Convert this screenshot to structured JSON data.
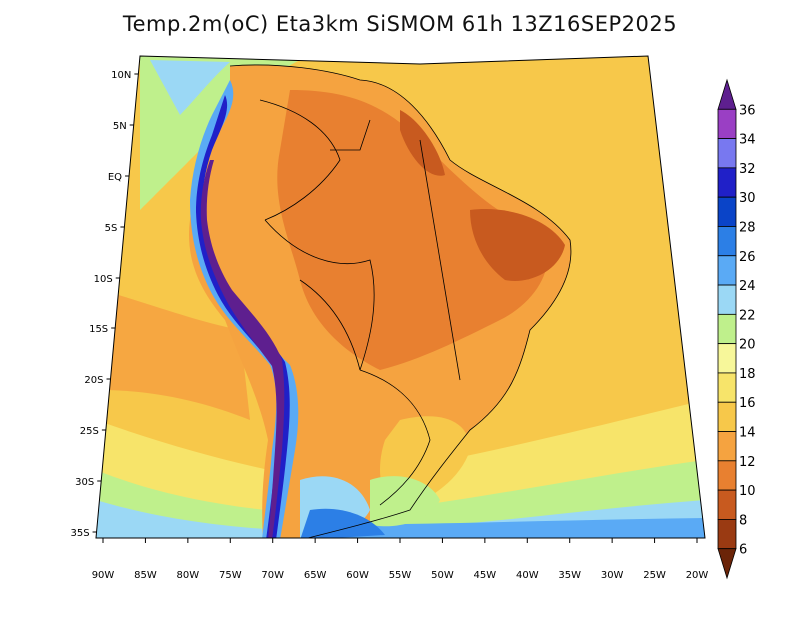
{
  "title": "Temp.2m(oC) Eta3km SiSMOM 61h 13Z16SEP2025",
  "lat_labels": [
    "10N",
    "5N",
    "EQ",
    "5S",
    "10S",
    "15S",
    "20S",
    "25S",
    "30S",
    "35S"
  ],
  "lon_labels": [
    "90W",
    "85W",
    "80W",
    "75W",
    "70W",
    "65W",
    "60W",
    "55W",
    "50W",
    "45W",
    "40W",
    "35W",
    "30W",
    "25W",
    "20W"
  ],
  "colorbar": {
    "unit": "oC",
    "levels": [
      "6",
      "8",
      "10",
      "12",
      "14",
      "16",
      "18",
      "20",
      "22",
      "24",
      "26",
      "28",
      "30",
      "32",
      "34",
      "36"
    ],
    "colors": [
      "#5e1f8f",
      "#9a3fc4",
      "#7878f0",
      "#2020c8",
      "#0a44c8",
      "#2c7fe6",
      "#5aaaf5",
      "#9bd8f5",
      "#bff08c",
      "#f7f79a",
      "#f7e46a",
      "#f7c84a",
      "#f5a340",
      "#e88030",
      "#c85a1f",
      "#9a3a12",
      "#6b2408"
    ]
  },
  "palette": {
    "ocean_warm": "#f7c84a",
    "ocean_hot": "#f5a340",
    "land_hot": "#e88030",
    "land_very_hot": "#c85a1f",
    "cool": "#bff08c",
    "cold": "#5aaaf5",
    "very_cold": "#2020c8",
    "andes": "#5e1f8f"
  }
}
